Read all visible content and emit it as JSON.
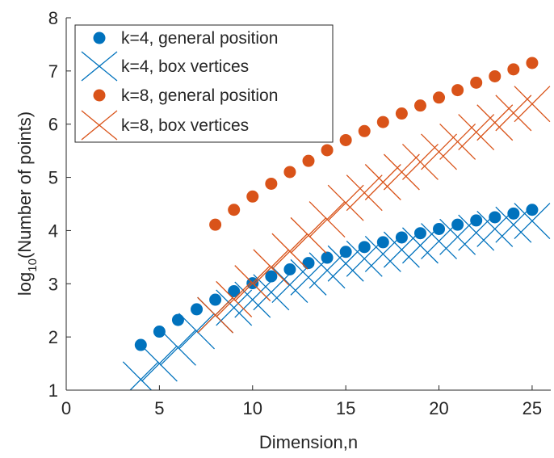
{
  "colors": {
    "series_k4": "#0072BD",
    "series_k8": "#D95319",
    "axis": "#262626",
    "background": "#ffffff"
  },
  "chart_data": {
    "type": "scatter",
    "title": "",
    "xlabel": "Dimension,n",
    "ylabel_main": "log",
    "ylabel_sub": "10",
    "ylabel_rest": "(Number of points)",
    "xlim": [
      0,
      26
    ],
    "ylim": [
      1,
      8
    ],
    "xticks": [
      0,
      5,
      10,
      15,
      20,
      25
    ],
    "yticks": [
      1,
      2,
      3,
      4,
      5,
      6,
      7,
      8
    ],
    "grid": false,
    "legend_position": "top-left",
    "series": [
      {
        "name": "k=4, general position",
        "marker": "circle",
        "color": "#0072BD",
        "x": [
          4,
          5,
          6,
          7,
          8,
          9,
          10,
          11,
          12,
          13,
          14,
          15,
          16,
          17,
          18,
          19,
          20,
          21,
          22,
          23,
          24,
          25
        ],
        "y": [
          1.85,
          2.1,
          2.32,
          2.52,
          2.7,
          2.86,
          3.01,
          3.14,
          3.27,
          3.39,
          3.49,
          3.6,
          3.69,
          3.78,
          3.87,
          3.95,
          4.03,
          4.11,
          4.19,
          4.25,
          4.32,
          4.39
        ]
      },
      {
        "name": "k=4, box vertices",
        "marker": "x",
        "color": "#0072BD",
        "x": [
          4,
          5,
          6,
          7,
          8,
          9,
          10,
          11,
          12,
          13,
          14,
          15,
          16,
          17,
          18,
          19,
          20,
          21,
          22,
          23,
          24,
          25
        ],
        "y": [
          1.2,
          1.5,
          1.8,
          2.11,
          2.41,
          2.55,
          2.7,
          2.84,
          2.98,
          3.12,
          3.25,
          3.38,
          3.47,
          3.56,
          3.64,
          3.72,
          3.8,
          3.88,
          3.96,
          4.03,
          4.11,
          4.18
        ]
      },
      {
        "name": "k=8, general position",
        "marker": "circle",
        "color": "#D95319",
        "x": [
          8,
          9,
          10,
          11,
          12,
          13,
          14,
          15,
          16,
          17,
          18,
          19,
          20,
          21,
          22,
          23,
          24,
          25
        ],
        "y": [
          4.11,
          4.39,
          4.64,
          4.88,
          5.1,
          5.31,
          5.51,
          5.7,
          5.87,
          6.04,
          6.2,
          6.35,
          6.5,
          6.64,
          6.78,
          6.9,
          7.03,
          7.15
        ]
      },
      {
        "name": "k=8, box vertices",
        "marker": "x",
        "color": "#D95319",
        "x": [
          8,
          9,
          10,
          11,
          12,
          13,
          14,
          15,
          16,
          17,
          18,
          19,
          20,
          21,
          22,
          23,
          24,
          25
        ],
        "y": [
          2.41,
          2.71,
          3.01,
          3.31,
          3.61,
          3.91,
          4.21,
          4.52,
          4.71,
          4.91,
          5.1,
          5.29,
          5.48,
          5.67,
          5.85,
          6.03,
          6.21,
          6.38
        ]
      }
    ]
  }
}
